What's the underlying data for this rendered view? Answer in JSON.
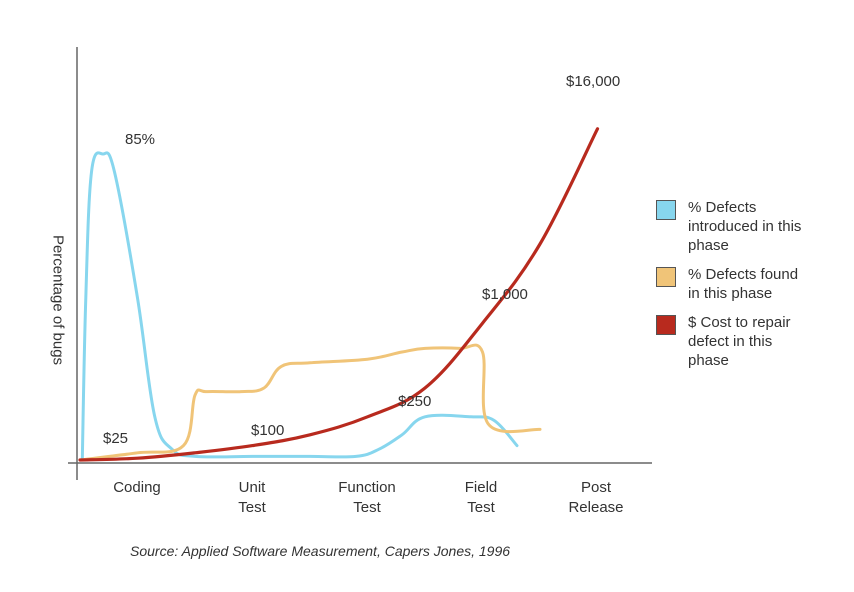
{
  "chart_data": {
    "type": "line",
    "ylabel": "Percentage of bugs",
    "categories": [
      "Coding",
      "Unit Test",
      "Function Test",
      "Field Test",
      "Post Release"
    ],
    "category_lines": [
      [
        "Coding"
      ],
      [
        "Unit",
        "Test"
      ],
      [
        "Function",
        "Test"
      ],
      [
        "Field",
        "Test"
      ],
      [
        "Post",
        "Release"
      ]
    ],
    "series": [
      {
        "name": "% Defects introduced in this phase",
        "color": "#87d6ee",
        "peak_label": "85%",
        "peak_value": 85,
        "points": [
          [
            0.02,
            0
          ],
          [
            0.05,
            45
          ],
          [
            0.1,
            80
          ],
          [
            0.2,
            85
          ],
          [
            0.3,
            80
          ],
          [
            0.5,
            45
          ],
          [
            0.65,
            12
          ],
          [
            0.8,
            3
          ],
          [
            1,
            1
          ],
          [
            1.5,
            1
          ],
          [
            2,
            1
          ],
          [
            2.4,
            1
          ],
          [
            2.6,
            3
          ],
          [
            2.8,
            7
          ],
          [
            3,
            12
          ],
          [
            3.4,
            12
          ],
          [
            3.6,
            11
          ],
          [
            3.8,
            4
          ]
        ]
      },
      {
        "name": "% Defects found in this phase",
        "color": "#f0c478",
        "points": [
          [
            0,
            0
          ],
          [
            0.5,
            2
          ],
          [
            0.9,
            4
          ],
          [
            1,
            18
          ],
          [
            1.1,
            19
          ],
          [
            1.4,
            19
          ],
          [
            1.6,
            20
          ],
          [
            1.75,
            26
          ],
          [
            2,
            27
          ],
          [
            2.5,
            28
          ],
          [
            2.8,
            30
          ],
          [
            3,
            31
          ],
          [
            3.3,
            31
          ],
          [
            3.5,
            30
          ],
          [
            3.55,
            10
          ],
          [
            4,
            8.5
          ]
        ]
      },
      {
        "name": "$ Cost to repair defect in this phase",
        "color": "#b82a1e",
        "cost_labels": [
          "$25",
          "$100",
          "$250",
          "$1,000",
          "$16,000"
        ],
        "points": [
          [
            0,
            0
          ],
          [
            0.5,
            0.5
          ],
          [
            1,
            2
          ],
          [
            1.5,
            4
          ],
          [
            2,
            7
          ],
          [
            2.5,
            12
          ],
          [
            3,
            20
          ],
          [
            3.5,
            38
          ],
          [
            4,
            60
          ],
          [
            4.5,
            92
          ]
        ]
      }
    ],
    "ylim": [
      0,
      100
    ],
    "grid": false,
    "legend_placement": "right"
  },
  "source": "Source: Applied Software Measurement, Capers Jones, 1996"
}
